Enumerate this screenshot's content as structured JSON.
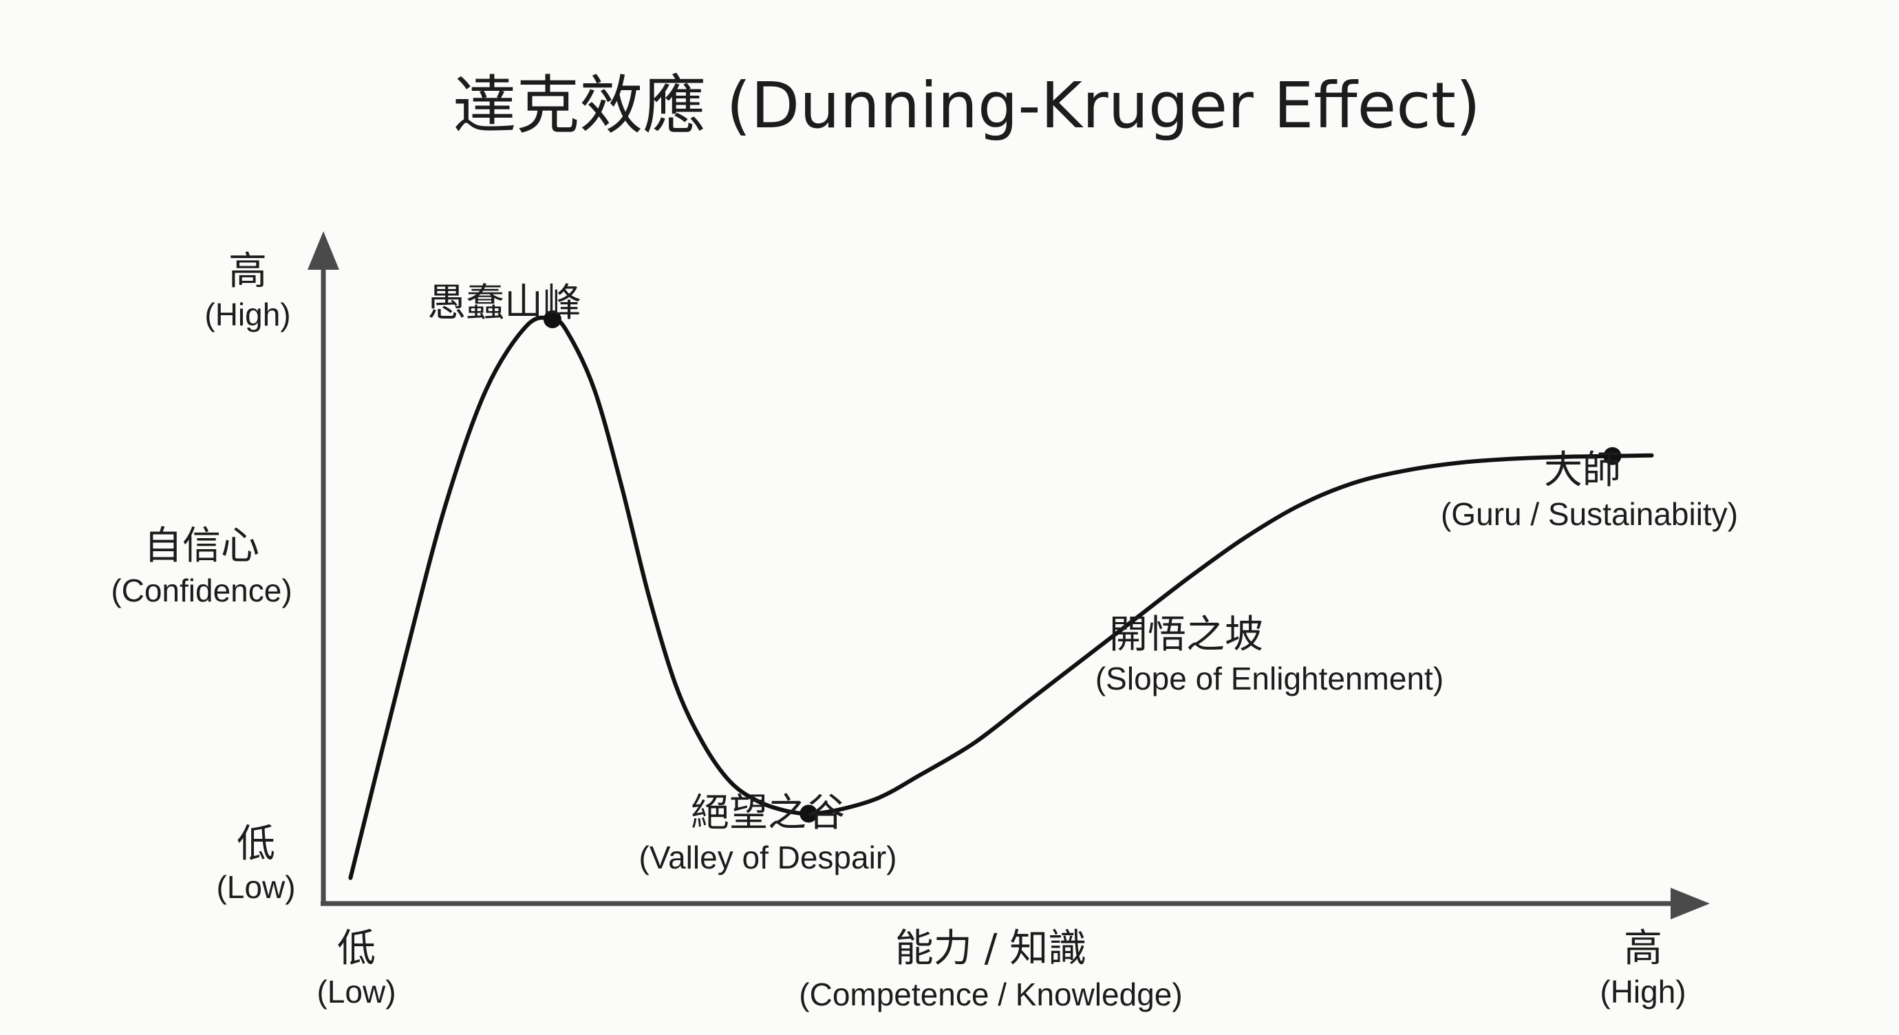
{
  "chart_data": {
    "type": "line",
    "title": "達克效應 (Dunning-Kruger Effect)",
    "xlabel": {
      "zh": "能力 / 知識",
      "en": "(Competence / Knowledge)"
    },
    "ylabel": {
      "zh": "自信心",
      "en": "(Confidence)"
    },
    "x_ticks": [
      {
        "zh": "低",
        "en": "(Low)",
        "value": 0
      },
      {
        "zh": "高",
        "en": "(High)",
        "value": 100
      }
    ],
    "y_ticks": [
      {
        "zh": "低",
        "en": "(Low)",
        "value": 0
      },
      {
        "zh": "高",
        "en": "(High)",
        "value": 100
      }
    ],
    "xlim": [
      0,
      100
    ],
    "ylim": [
      0,
      100
    ],
    "grid": false,
    "series": [
      {
        "x": [
          2,
          6,
          9,
          12,
          15,
          16.9,
          18,
          20,
          22,
          24,
          26,
          28,
          30,
          32,
          34,
          35.8,
          38,
          41,
          44,
          48,
          52,
          56,
          60,
          64,
          68,
          72,
          76,
          80,
          84,
          88,
          92,
          95.1,
          98
        ],
        "y": [
          4,
          38,
          62,
          80,
          90,
          91,
          89,
          80,
          65,
          48,
          34,
          25,
          19,
          16,
          14.5,
          14,
          14.6,
          16.5,
          20,
          25,
          31.5,
          38,
          44.5,
          51,
          57,
          62,
          65.5,
          67.5,
          68.7,
          69.3,
          69.6,
          69.7,
          69.8
        ]
      }
    ],
    "annotations": [
      {
        "zh": "愚蠢山峰",
        "en": "",
        "x": 16.9,
        "y": 91
      },
      {
        "zh": "絕望之谷",
        "en": "(Valley of Despair)",
        "x": 35.8,
        "y": 14
      },
      {
        "zh": "開悟之坡",
        "en": "(Slope of Enlightenment)",
        "x": 66,
        "y": 48
      },
      {
        "zh": "大師",
        "en": "(Guru / Sustainabiity)",
        "x": 95.1,
        "y": 69.7
      }
    ]
  }
}
